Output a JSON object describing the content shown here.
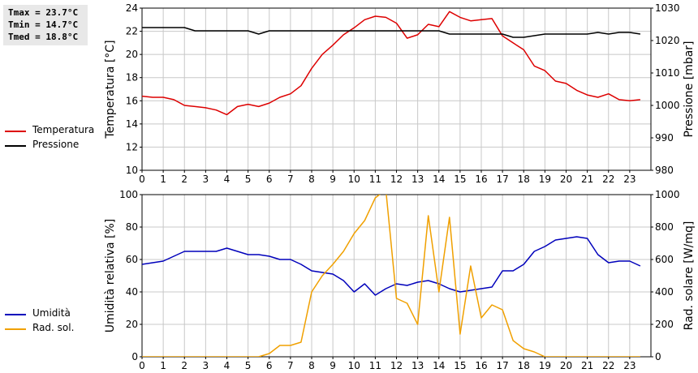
{
  "stats": {
    "tmax": "Tmax = 23.7°C",
    "tmin": "Tmin = 14.7°C",
    "tmed": "Tmed = 18.8°C"
  },
  "colors": {
    "temperature": "#dd0000",
    "pressure": "#000000",
    "humidity": "#0000bb",
    "radiation": "#f0a000",
    "grid": "#c8c8c8"
  },
  "legend_top": [
    {
      "label": "Temperatura",
      "color": "#dd0000"
    },
    {
      "label": "Pressione",
      "color": "#000000"
    }
  ],
  "legend_bottom": [
    {
      "label": "Umidità",
      "color": "#0000bb"
    },
    {
      "label": "Rad. sol.",
      "color": "#f0a000"
    }
  ],
  "chart_data": [
    {
      "type": "line",
      "grid": true,
      "xlim": [
        0,
        24
      ],
      "xticks": [
        "0",
        "1",
        "2",
        "3",
        "4",
        "5",
        "6",
        "7",
        "8",
        "9",
        "10",
        "11",
        "12",
        "13",
        "14",
        "15",
        "16",
        "17",
        "18",
        "19",
        "20",
        "21",
        "22",
        "23"
      ],
      "ylabel_left": "Temperatura [°C]",
      "ylabel_right": "Pressione [mbar]",
      "ylim_left": [
        10,
        24
      ],
      "yticks_left": [
        "10",
        "12",
        "14",
        "16",
        "18",
        "20",
        "22",
        "24"
      ],
      "ylim_right": [
        980,
        1030
      ],
      "yticks_right": [
        "980",
        "990",
        "1000",
        "1010",
        "1020",
        "1030"
      ],
      "series": [
        {
          "name": "Temperatura",
          "axis": "left",
          "x": [
            0,
            0.5,
            1,
            1.5,
            2,
            2.5,
            3,
            3.5,
            4,
            4.5,
            5,
            5.5,
            6,
            6.5,
            7,
            7.5,
            8,
            8.5,
            9,
            9.5,
            10,
            10.5,
            11,
            11.5,
            12,
            12.5,
            13,
            13.5,
            14,
            14.5,
            15,
            15.5,
            16,
            16.5,
            17,
            17.5,
            18,
            18.5,
            19,
            19.5,
            20,
            20.5,
            21,
            21.5,
            22,
            22.5,
            23,
            23.5
          ],
          "values": [
            16.4,
            16.3,
            16.3,
            16.1,
            15.6,
            15.5,
            15.4,
            15.2,
            14.8,
            15.5,
            15.7,
            15.5,
            15.8,
            16.3,
            16.6,
            17.3,
            18.8,
            20.0,
            20.8,
            21.7,
            22.3,
            23.0,
            23.3,
            23.2,
            22.7,
            21.4,
            21.7,
            22.6,
            22.4,
            23.7,
            23.2,
            22.9,
            23.0,
            23.1,
            21.6,
            21.0,
            20.4,
            19.0,
            18.6,
            17.7,
            17.5,
            16.9,
            16.5,
            16.3,
            16.6,
            16.1,
            16.0,
            16.1
          ]
        },
        {
          "name": "Pressione",
          "axis": "right",
          "x": [
            0,
            1,
            2,
            2.5,
            3,
            4,
            5,
            5.5,
            6,
            7,
            8,
            9,
            10,
            11,
            12,
            13,
            14,
            14.5,
            15,
            16,
            17,
            17.5,
            18,
            19,
            20,
            21,
            21.5,
            22,
            22.5,
            23,
            23.5
          ],
          "values": [
            1024,
            1024,
            1024,
            1023,
            1023,
            1023,
            1023,
            1022,
            1023,
            1023,
            1023,
            1023,
            1023,
            1023,
            1023,
            1023,
            1023,
            1022,
            1022,
            1022,
            1022,
            1021,
            1021,
            1022,
            1022,
            1022,
            1022.5,
            1022,
            1022.5,
            1022.5,
            1022
          ]
        }
      ]
    },
    {
      "type": "line",
      "grid": true,
      "xlim": [
        0,
        24
      ],
      "xticks": [
        "0",
        "1",
        "2",
        "3",
        "4",
        "5",
        "6",
        "7",
        "8",
        "9",
        "10",
        "11",
        "12",
        "13",
        "14",
        "15",
        "16",
        "17",
        "18",
        "19",
        "20",
        "21",
        "22",
        "23"
      ],
      "ylabel_left": "Umidità relativa [%]",
      "ylabel_right": "Rad. solare [W/mq]",
      "ylim_left": [
        0,
        100
      ],
      "yticks_left": [
        "0",
        "20",
        "40",
        "60",
        "80",
        "100"
      ],
      "ylim_right": [
        0,
        1000
      ],
      "yticks_right": [
        "0",
        "200",
        "400",
        "600",
        "800",
        "1000"
      ],
      "series": [
        {
          "name": "Umidità",
          "axis": "left",
          "x": [
            0,
            0.5,
            1,
            1.5,
            2,
            2.5,
            3,
            3.5,
            4,
            4.5,
            5,
            5.5,
            6,
            6.5,
            7,
            7.5,
            8,
            8.5,
            9,
            9.5,
            10,
            10.5,
            11,
            11.5,
            12,
            12.5,
            13,
            13.5,
            14,
            14.5,
            15,
            15.5,
            16,
            16.5,
            17,
            17.5,
            18,
            18.5,
            19,
            19.5,
            20,
            20.5,
            21,
            21.5,
            22,
            22.5,
            23,
            23.5
          ],
          "values": [
            57,
            58,
            59,
            62,
            65,
            65,
            65,
            65,
            67,
            65,
            63,
            63,
            62,
            60,
            60,
            57,
            53,
            52,
            51,
            47,
            40,
            45,
            38,
            42,
            45,
            44,
            46,
            47,
            45,
            42,
            40,
            41,
            42,
            43,
            53,
            53,
            57,
            65,
            68,
            72,
            73,
            74,
            73,
            63,
            58,
            59,
            59,
            56
          ]
        },
        {
          "name": "Rad. sol.",
          "axis": "right",
          "x": [
            0,
            1,
            2,
            3,
            4,
            5,
            5.5,
            6,
            6.5,
            7,
            7.5,
            8,
            8.5,
            9,
            9.5,
            10,
            10.5,
            11,
            11.5,
            12,
            12.5,
            13,
            13.5,
            14,
            14.5,
            15,
            15.5,
            16,
            16.5,
            17,
            17.5,
            18,
            18.5,
            19,
            20,
            21,
            22,
            23,
            23.5
          ],
          "values": [
            0,
            0,
            0,
            0,
            0,
            0,
            0,
            20,
            70,
            70,
            90,
            400,
            500,
            570,
            650,
            760,
            840,
            980,
            1030,
            360,
            330,
            200,
            870,
            400,
            860,
            140,
            560,
            240,
            320,
            290,
            100,
            50,
            30,
            0,
            0,
            0,
            0,
            0,
            0
          ]
        }
      ]
    }
  ]
}
